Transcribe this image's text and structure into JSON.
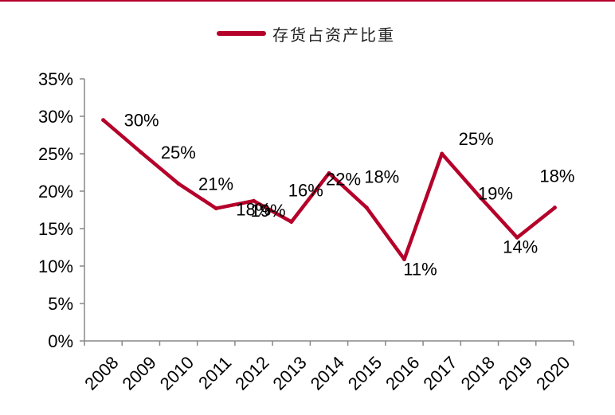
{
  "colors": {
    "line": "#b5002a",
    "axis": "#888888",
    "rule": "#b5002a"
  },
  "chart_data": {
    "type": "line",
    "title": "",
    "xlabel": "",
    "ylabel": "",
    "ylim": [
      0,
      35
    ],
    "yticks": [
      0,
      5,
      10,
      15,
      20,
      25,
      30,
      35
    ],
    "ytick_labels": [
      "0%",
      "5%",
      "10%",
      "15%",
      "20%",
      "25%",
      "30%",
      "35%"
    ],
    "categories": [
      "2008",
      "2009",
      "2010",
      "2011",
      "2012",
      "2013",
      "2014",
      "2015",
      "2016",
      "2017",
      "2018",
      "2019",
      "2020"
    ],
    "grid": false,
    "legend_position": "top-center",
    "series": [
      {
        "name": "存货占资产比重",
        "values": [
          29.5,
          25.2,
          21.0,
          17.7,
          18.7,
          15.9,
          22.4,
          17.8,
          10.9,
          25.0,
          19.3,
          13.8,
          17.8
        ],
        "data_labels": [
          "30%",
          "25%",
          "21%",
          "18%",
          "19%",
          "16%",
          "22%",
          "18%",
          "11%",
          "25%",
          "19%",
          "14%",
          "18%"
        ]
      }
    ]
  }
}
